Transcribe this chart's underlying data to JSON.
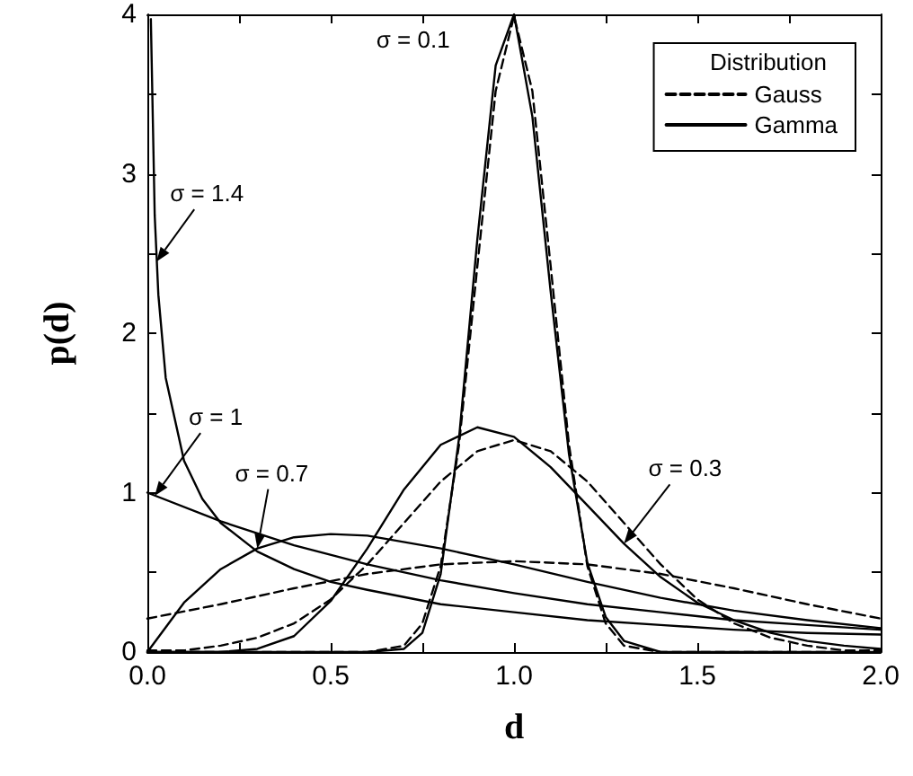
{
  "chart_data": {
    "type": "line",
    "xlabel": "d",
    "ylabel": "p(d)",
    "legend_title": "Distribution",
    "legend": "top right",
    "grid": false,
    "marker": "none",
    "xlim": [
      0,
      2
    ],
    "ylim": [
      0,
      4
    ],
    "xticks": [
      {
        "value": 0,
        "label": "0.0"
      },
      {
        "value": 0.25,
        "label": null
      },
      {
        "value": 0.5,
        "label": "0.5"
      },
      {
        "value": 0.75,
        "label": null
      },
      {
        "value": 1,
        "label": "1.0"
      },
      {
        "value": 1.25,
        "label": null
      },
      {
        "value": 1.5,
        "label": "1.5"
      },
      {
        "value": 1.75,
        "label": null
      },
      {
        "value": 2,
        "label": "2.0"
      }
    ],
    "yticks": [
      0,
      {
        "value": 0.5,
        "label": null
      },
      1,
      {
        "value": 1.5,
        "label": null
      },
      2,
      {
        "value": 2.5,
        "label": null
      },
      3,
      {
        "value": 3.5,
        "label": null
      },
      4
    ],
    "series": [
      {
        "name": "Gauss",
        "color": "#000000",
        "line_style": "dashed",
        "x": [
          0,
          0.6,
          0.7,
          0.75,
          0.8,
          0.85,
          0.9,
          0.95,
          1,
          1.05,
          1.1,
          1.15,
          1.2,
          1.25,
          1.3,
          1.4,
          2
        ],
        "values": [
          0,
          0,
          0.04,
          0.18,
          0.54,
          1.3,
          2.42,
          3.52,
          3.99,
          3.52,
          2.42,
          1.3,
          0.54,
          0.18,
          0.04,
          0,
          0
        ]
      },
      {
        "name": "Gamma",
        "color": "#000000",
        "line_style": "solid",
        "x": [
          0,
          0.6,
          0.7,
          0.75,
          0.8,
          0.85,
          0.9,
          0.95,
          1,
          1.05,
          1.1,
          1.15,
          1.2,
          1.25,
          1.3,
          1.4,
          2
        ],
        "values": [
          0,
          0,
          0.02,
          0.12,
          0.49,
          1.34,
          2.59,
          3.68,
          4.0,
          3.36,
          2.26,
          1.24,
          0.56,
          0.22,
          0.07,
          0,
          0
        ]
      },
      {
        "color": "#000000",
        "line_style": "dashed",
        "x": [
          0,
          0.1,
          0.2,
          0.3,
          0.4,
          0.5,
          0.6,
          0.7,
          0.8,
          0.9,
          1,
          1.1,
          1.2,
          1.3,
          1.4,
          1.5,
          1.6,
          1.7,
          1.8,
          1.9,
          2
        ],
        "values": [
          0.01,
          0.01,
          0.04,
          0.09,
          0.18,
          0.33,
          0.55,
          0.81,
          1.07,
          1.26,
          1.33,
          1.26,
          1.07,
          0.81,
          0.55,
          0.33,
          0.18,
          0.09,
          0.04,
          0.01,
          0.01
        ]
      },
      {
        "color": "#000000",
        "line_style": "solid",
        "x": [
          0,
          0.1,
          0.2,
          0.3,
          0.4,
          0.5,
          0.6,
          0.7,
          0.8,
          0.9,
          1,
          1.1,
          1.2,
          1.3,
          1.4,
          1.5,
          1.6,
          1.7,
          1.8,
          1.9,
          2
        ],
        "values": [
          0,
          0,
          0,
          0.02,
          0.1,
          0.32,
          0.65,
          1.02,
          1.3,
          1.41,
          1.35,
          1.16,
          0.92,
          0.68,
          0.47,
          0.31,
          0.2,
          0.12,
          0.07,
          0.04,
          0.02
        ]
      },
      {
        "color": "#000000",
        "line_style": "dashed",
        "x": [
          0,
          0.2,
          0.4,
          0.6,
          0.8,
          1,
          1.2,
          1.4,
          1.6,
          1.8,
          2
        ],
        "values": [
          0.21,
          0.3,
          0.4,
          0.49,
          0.55,
          0.57,
          0.55,
          0.49,
          0.4,
          0.3,
          0.21
        ]
      },
      {
        "color": "#000000",
        "line_style": "solid",
        "x": [
          0,
          0.1,
          0.2,
          0.3,
          0.4,
          0.5,
          0.6,
          0.8,
          1,
          1.2,
          1.4,
          1.6,
          1.8,
          2
        ],
        "values": [
          0,
          0.31,
          0.52,
          0.65,
          0.72,
          0.74,
          0.73,
          0.65,
          0.55,
          0.44,
          0.34,
          0.26,
          0.2,
          0.15
        ]
      },
      {
        "color": "#000000",
        "line_style": "solid",
        "x": [
          0,
          0.2,
          0.4,
          0.6,
          0.8,
          1,
          1.2,
          1.4,
          1.6,
          1.8,
          2
        ],
        "values": [
          1,
          0.82,
          0.67,
          0.55,
          0.45,
          0.37,
          0.3,
          0.25,
          0.2,
          0.17,
          0.14
        ]
      },
      {
        "color": "#000000",
        "line_style": "solid",
        "x": [
          0.0095,
          0.02,
          0.03,
          0.05,
          0.1,
          0.15,
          0.2,
          0.3,
          0.4,
          0.5,
          0.6,
          0.8,
          1,
          1.2,
          1.4,
          1.6,
          1.8,
          2
        ],
        "values": [
          3.97,
          2.74,
          2.24,
          1.72,
          1.2,
          0.96,
          0.81,
          0.63,
          0.52,
          0.44,
          0.39,
          0.3,
          0.25,
          0.2,
          0.17,
          0.14,
          0.12,
          0.11
        ]
      }
    ],
    "annotations": [
      {
        "text": "σ = 0.1",
        "x": 0.96,
        "y": 3.75
      },
      {
        "text": "σ = 1.4",
        "x": 0.025,
        "y": 2.45
      },
      {
        "text": "σ = 1",
        "x": 0.02,
        "y": 0.98
      },
      {
        "text": "σ = 0.7",
        "x": 0.3,
        "y": 0.65
      },
      {
        "text": "σ = 0.3",
        "x": 1.3,
        "y": 0.68
      }
    ]
  }
}
